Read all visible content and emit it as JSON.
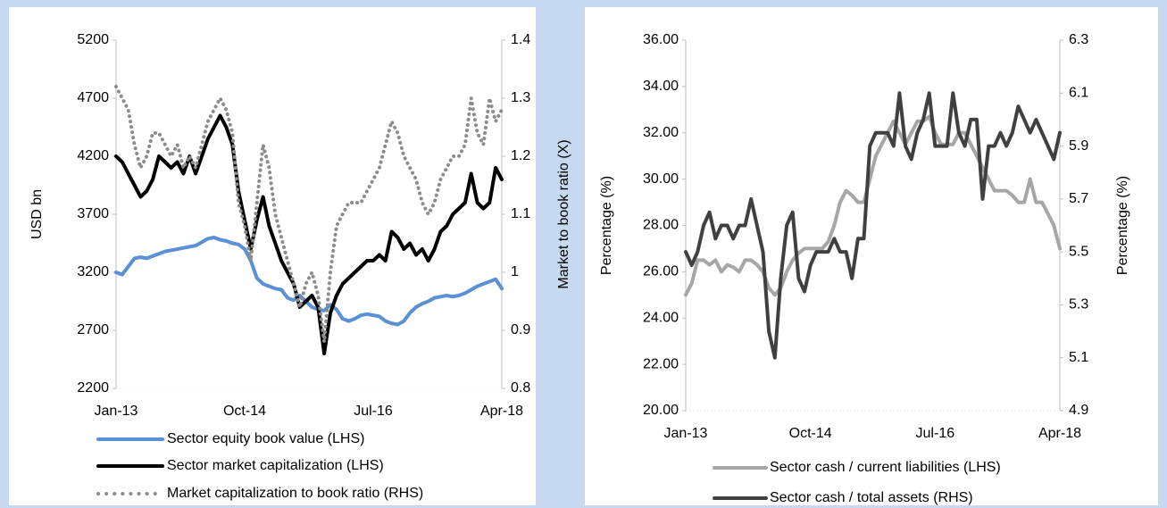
{
  "chart_data": [
    {
      "type": "line",
      "ylabel": "USD bn",
      "y2label": "Market to book ratio (X)",
      "categories": [
        "Jan-13",
        null,
        null,
        null,
        null,
        null,
        null,
        null,
        null,
        null,
        null,
        null,
        null,
        null,
        null,
        null,
        null,
        null,
        null,
        null,
        null,
        "Oct-14",
        null,
        null,
        null,
        null,
        null,
        null,
        null,
        null,
        null,
        null,
        null,
        null,
        null,
        null,
        null,
        null,
        null,
        null,
        null,
        null,
        "Jul-16",
        null,
        null,
        null,
        null,
        null,
        null,
        null,
        null,
        null,
        null,
        null,
        null,
        null,
        null,
        null,
        null,
        null,
        null,
        null,
        null,
        "Apr-18"
      ],
      "ylim": [
        2200,
        5200
      ],
      "yticks": [
        2200,
        2700,
        3200,
        3700,
        4200,
        4700,
        5200
      ],
      "y2lim": [
        0.8,
        1.4
      ],
      "y2ticks": [
        0.8,
        0.9,
        1,
        1.1,
        1.2,
        1.3,
        1.4
      ],
      "series": [
        {
          "name": "Sector equity book value (LHS)",
          "color": "#5b8fd6",
          "style": "solid",
          "values": [
            3200,
            3180,
            3250,
            3320,
            3330,
            3320,
            3340,
            3360,
            3380,
            3390,
            3400,
            3410,
            3420,
            3430,
            3460,
            3490,
            3500,
            3480,
            3470,
            3450,
            3440,
            3400,
            3300,
            3150,
            3100,
            3080,
            3060,
            3050,
            2980,
            2960,
            3000,
            2950,
            2900,
            2880,
            2870,
            2920,
            2880,
            2800,
            2780,
            2800,
            2830,
            2840,
            2830,
            2820,
            2780,
            2760,
            2750,
            2780,
            2850,
            2900,
            2930,
            2950,
            2980,
            2990,
            3000,
            2990,
            3000,
            3020,
            3050,
            3080,
            3100,
            3120,
            3140,
            3060
          ]
        },
        {
          "name": "Sector market capitalization (LHS)",
          "color": "#000000",
          "style": "solid",
          "values": [
            4200,
            4150,
            4050,
            3950,
            3850,
            3900,
            4000,
            4200,
            4150,
            4100,
            4150,
            4050,
            4200,
            4050,
            4200,
            4350,
            4450,
            4550,
            4450,
            4300,
            3900,
            3650,
            3400,
            3650,
            3850,
            3600,
            3450,
            3300,
            3200,
            3100,
            2900,
            2950,
            3000,
            2900,
            2500,
            2850,
            3000,
            3100,
            3150,
            3200,
            3250,
            3300,
            3300,
            3350,
            3300,
            3550,
            3500,
            3400,
            3450,
            3350,
            3400,
            3300,
            3400,
            3550,
            3600,
            3700,
            3750,
            3800,
            4050,
            3800,
            3750,
            3800,
            4100,
            4000
          ]
        },
        {
          "name": "Market capitalization to book ratio (RHS)",
          "color": "#8c8c8c",
          "style": "dotted",
          "axis": "y2",
          "values": [
            1.32,
            1.3,
            1.28,
            1.22,
            1.18,
            1.2,
            1.24,
            1.24,
            1.22,
            1.2,
            1.22,
            1.18,
            1.2,
            1.18,
            1.22,
            1.26,
            1.28,
            1.3,
            1.28,
            1.24,
            1.12,
            1.08,
            1.02,
            1.12,
            1.22,
            1.18,
            1.1,
            1.06,
            1.02,
            0.98,
            0.94,
            0.98,
            1,
            0.96,
            0.88,
            1,
            1.08,
            1.1,
            1.12,
            1.12,
            1.12,
            1.14,
            1.16,
            1.18,
            1.22,
            1.26,
            1.24,
            1.2,
            1.18,
            1.16,
            1.12,
            1.1,
            1.12,
            1.16,
            1.18,
            1.2,
            1.2,
            1.22,
            1.3,
            1.24,
            1.22,
            1.3,
            1.26,
            1.28
          ]
        }
      ]
    },
    {
      "type": "line",
      "ylabel": "Percentage (%)",
      "y2label": "Percentage (%)",
      "categories": [
        "Jan-13",
        null,
        null,
        null,
        null,
        null,
        null,
        null,
        null,
        null,
        null,
        null,
        null,
        null,
        null,
        null,
        null,
        null,
        null,
        null,
        null,
        "Oct-14",
        null,
        null,
        null,
        null,
        null,
        null,
        null,
        null,
        null,
        null,
        null,
        null,
        null,
        null,
        null,
        null,
        null,
        null,
        null,
        null,
        "Jul-16",
        null,
        null,
        null,
        null,
        null,
        null,
        null,
        null,
        null,
        null,
        null,
        null,
        null,
        null,
        null,
        null,
        null,
        null,
        null,
        null,
        "Apr-18"
      ],
      "ylim": [
        20,
        36
      ],
      "yticks": [
        {
          "value": 20,
          "label": "20.00"
        },
        {
          "value": 22,
          "label": "22.00"
        },
        {
          "value": 24,
          "label": "24.00"
        },
        {
          "value": 26,
          "label": "26.00"
        },
        {
          "value": 28,
          "label": "28.00"
        },
        {
          "value": 30,
          "label": "30.00"
        },
        {
          "value": 32,
          "label": "32.00"
        },
        {
          "value": 34,
          "label": "34.00"
        },
        {
          "value": 36,
          "label": "36.00"
        }
      ],
      "y2lim": [
        4.9,
        6.3
      ],
      "y2ticks": [
        4.9,
        5.1,
        5.3,
        5.5,
        5.7,
        5.9,
        6.1,
        6.3
      ],
      "series": [
        {
          "name": "Sector cash / current liabilities (LHS)",
          "color": "#a6a6a6",
          "style": "solid",
          "values": [
            25,
            25.5,
            26.5,
            26.5,
            26.3,
            26.5,
            26,
            26.3,
            26.2,
            26,
            26.5,
            26.5,
            26.3,
            26,
            25.3,
            25,
            25.3,
            26,
            26.5,
            26.8,
            27,
            27,
            27,
            27,
            27.3,
            28,
            29,
            29.5,
            29.3,
            29,
            29,
            30,
            31,
            31.5,
            32,
            32.5,
            32,
            31.5,
            32,
            32.5,
            32.5,
            32.7,
            32,
            31.5,
            31.5,
            31.5,
            32,
            32,
            31.5,
            31,
            30.5,
            30,
            29.5,
            29.5,
            29.5,
            29.3,
            29,
            29,
            30,
            29,
            29,
            28.5,
            28,
            27
          ]
        },
        {
          "name": "Sector cash / total assets (RHS)",
          "color": "#404040",
          "style": "solid",
          "axis": "y2",
          "values": [
            5.5,
            5.45,
            5.5,
            5.6,
            5.65,
            5.55,
            5.6,
            5.6,
            5.55,
            5.6,
            5.6,
            5.7,
            5.6,
            5.5,
            5.2,
            5.1,
            5.4,
            5.6,
            5.65,
            5.4,
            5.35,
            5.45,
            5.5,
            5.5,
            5.5,
            5.55,
            5.5,
            5.5,
            5.4,
            5.55,
            5.55,
            5.9,
            5.95,
            5.95,
            5.95,
            5.9,
            6.1,
            5.9,
            5.85,
            5.95,
            6,
            6.1,
            5.9,
            5.9,
            5.9,
            6.1,
            5.95,
            5.9,
            6,
            6,
            5.7,
            5.9,
            5.9,
            5.95,
            5.9,
            5.95,
            6.05,
            6,
            5.95,
            6,
            5.95,
            5.9,
            5.85,
            5.95
          ]
        }
      ]
    }
  ]
}
